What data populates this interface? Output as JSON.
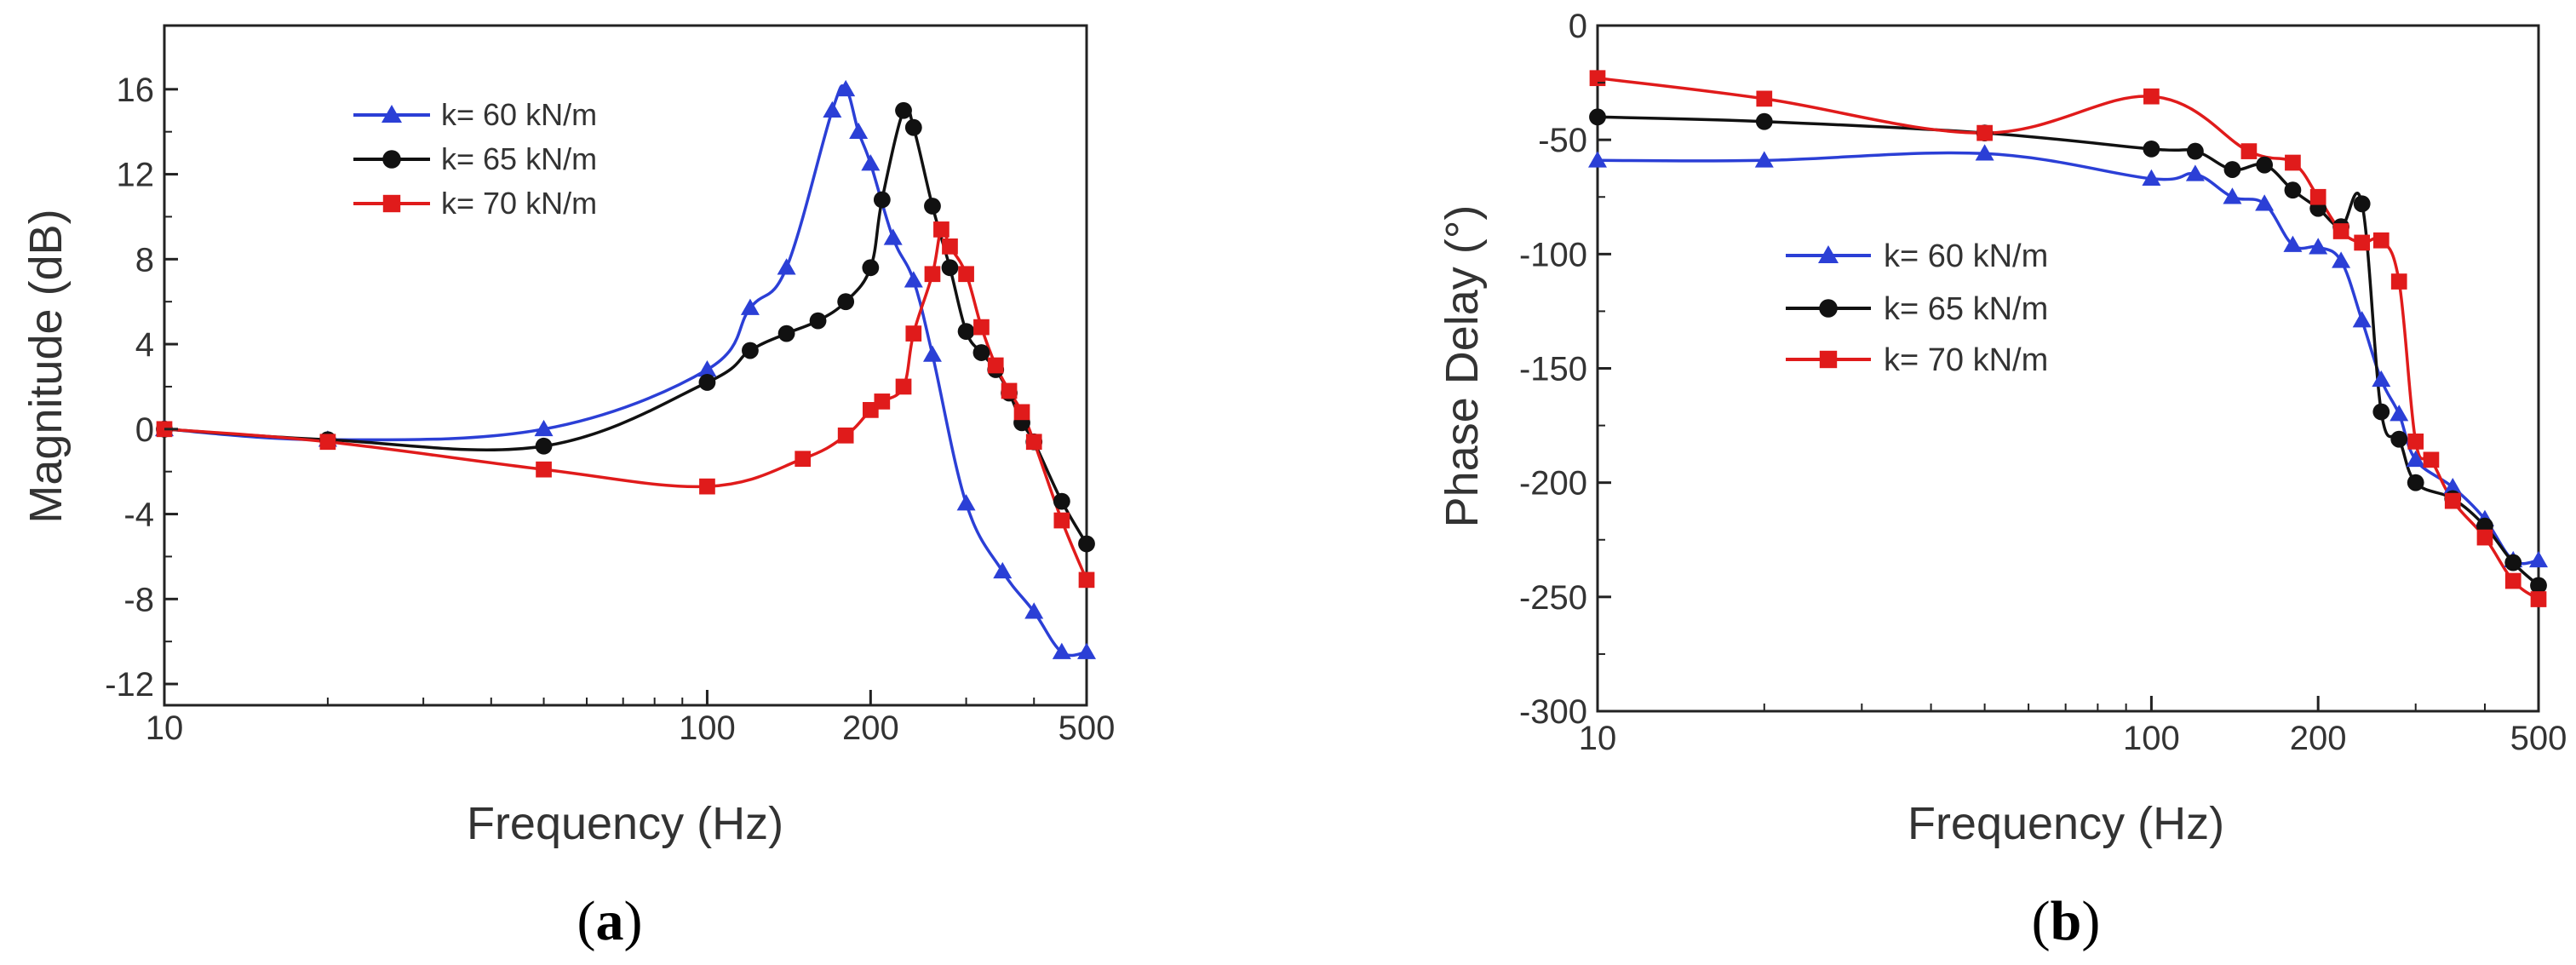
{
  "colors": {
    "k60": "#2b3fd6",
    "k65": "#111111",
    "k70": "#e01b1b"
  },
  "chart_data": [
    {
      "id": "a",
      "type": "line",
      "xscale": "log",
      "xlim": [
        10,
        500
      ],
      "ylim": [
        -13,
        19
      ],
      "xticks": [
        10,
        100,
        200,
        500
      ],
      "xtick_labels": [
        "10",
        "100",
        "200",
        "500"
      ],
      "yticks": [
        -12,
        -8,
        -4,
        0,
        4,
        8,
        12,
        16
      ],
      "ytick_labels": [
        "-12",
        "-8",
        "-4",
        "0",
        "4",
        "8",
        "12",
        "16"
      ],
      "xlabel": "Frequency (Hz)",
      "ylabel": "Magnitude (dB)",
      "panel_label": {
        "open": "(",
        "letter": "a",
        "close": ")"
      },
      "legend_position": "top-left",
      "series": [
        {
          "name": "k= 60 kN/m",
          "color_key": "k60",
          "marker": "triangle",
          "x": [
            10,
            20,
            50,
            100,
            120,
            140,
            170,
            180,
            190,
            200,
            220,
            240,
            260,
            300,
            350,
            400,
            450,
            500
          ],
          "y": [
            0,
            -0.5,
            0,
            2.8,
            5.7,
            7.6,
            15,
            16,
            14,
            12.5,
            9,
            7,
            3.5,
            -3.5,
            -6.7,
            -8.6,
            -10.5,
            -10.5
          ]
        },
        {
          "name": "k= 65 kN/m",
          "color_key": "k65",
          "marker": "circle",
          "x": [
            10,
            20,
            50,
            100,
            120,
            140,
            160,
            180,
            200,
            210,
            230,
            240,
            260,
            280,
            300,
            320,
            340,
            360,
            380,
            400,
            450,
            500
          ],
          "y": [
            0,
            -0.5,
            -0.8,
            2.2,
            3.7,
            4.5,
            5.1,
            6,
            7.6,
            10.8,
            15,
            14.2,
            10.5,
            7.6,
            4.6,
            3.6,
            2.8,
            1.7,
            0.3,
            -0.6,
            -3.4,
            -5.4
          ]
        },
        {
          "name": "k= 70 kN/m",
          "color_key": "k70",
          "marker": "square",
          "x": [
            10,
            20,
            50,
            100,
            150,
            180,
            200,
            210,
            230,
            240,
            260,
            270,
            280,
            300,
            320,
            340,
            360,
            380,
            400,
            450,
            500
          ],
          "y": [
            0,
            -0.6,
            -1.9,
            -2.7,
            -1.4,
            -0.3,
            0.9,
            1.3,
            2,
            4.5,
            7.3,
            9.4,
            8.6,
            7.3,
            4.8,
            3,
            1.8,
            0.8,
            -0.6,
            -4.3,
            -7.1
          ]
        }
      ]
    },
    {
      "id": "b",
      "type": "line",
      "xscale": "log",
      "xlim": [
        10,
        500
      ],
      "ylim": [
        -300,
        0
      ],
      "xticks": [
        10,
        100,
        200,
        500
      ],
      "xtick_labels": [
        "10",
        "100",
        "200",
        "500"
      ],
      "yticks": [
        -300,
        -250,
        -200,
        -150,
        -100,
        -50,
        0
      ],
      "ytick_labels": [
        "-300",
        "-250",
        "-200",
        "-150",
        "-100",
        "-50",
        "0"
      ],
      "xlabel": "Frequency (Hz)",
      "ylabel": "Phase Delay (°)",
      "panel_label": {
        "open": "(",
        "letter": "b",
        "close": ")"
      },
      "legend_position": "center-left",
      "series": [
        {
          "name": "k= 60 kN/m",
          "color_key": "k60",
          "marker": "triangle",
          "x": [
            10,
            20,
            50,
            100,
            120,
            140,
            160,
            180,
            200,
            220,
            240,
            260,
            280,
            300,
            350,
            400,
            450,
            500
          ],
          "y": [
            -59,
            -59,
            -56,
            -67,
            -65,
            -75,
            -78,
            -96,
            -97,
            -103,
            -129,
            -155,
            -170,
            -190,
            -202,
            -216,
            -234,
            -234
          ]
        },
        {
          "name": "k= 65 kN/m",
          "color_key": "k65",
          "marker": "circle",
          "x": [
            10,
            20,
            50,
            100,
            120,
            140,
            160,
            180,
            200,
            220,
            240,
            260,
            280,
            300,
            350,
            400,
            450,
            500
          ],
          "y": [
            -40,
            -42,
            -47,
            -54,
            -55,
            -63,
            -61,
            -72,
            -80,
            -88,
            -78,
            -169,
            -181,
            -200,
            -207,
            -219,
            -235,
            -245
          ]
        },
        {
          "name": "k= 70 kN/m",
          "color_key": "k70",
          "marker": "square",
          "x": [
            10,
            20,
            50,
            100,
            150,
            180,
            200,
            220,
            240,
            260,
            280,
            300,
            320,
            350,
            400,
            450,
            500
          ],
          "y": [
            -23,
            -32,
            -47,
            -31,
            -55,
            -60,
            -75,
            -90,
            -95,
            -94,
            -112,
            -182,
            -190,
            -208,
            -224,
            -243,
            -251
          ]
        }
      ]
    }
  ]
}
